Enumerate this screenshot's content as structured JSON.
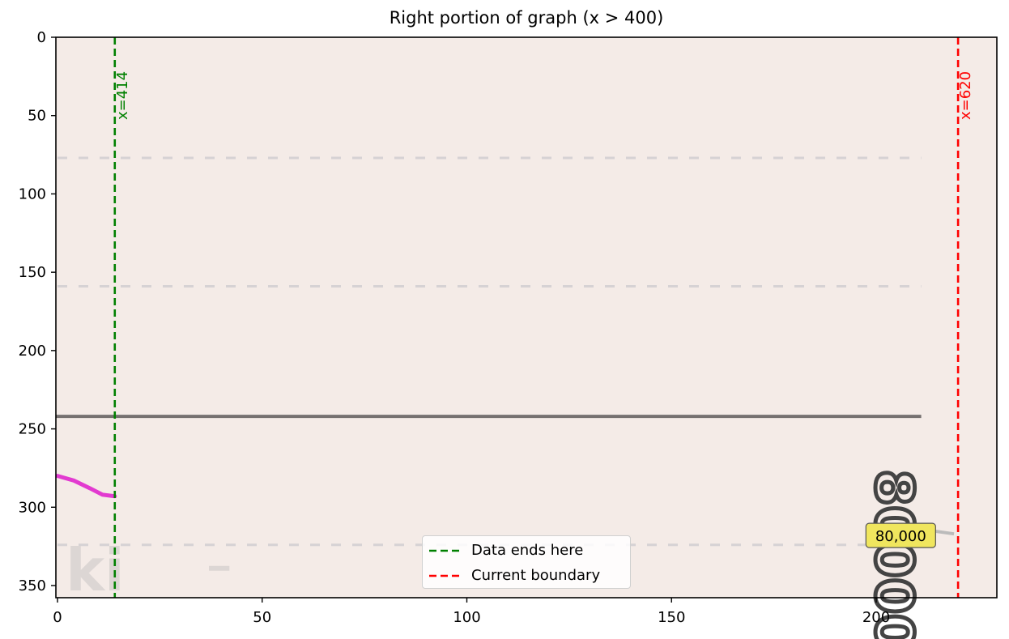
{
  "chart_data": {
    "type": "line",
    "title": "Right portion of graph (x > 400)",
    "xlim": [
      0,
      230
    ],
    "ylim": [
      359,
      0
    ],
    "x_ticks": [
      0,
      50,
      100,
      150,
      200
    ],
    "y_ticks": [
      0,
      50,
      100,
      150,
      200,
      250,
      300,
      350
    ],
    "grid": false,
    "background": "#f4ebe7",
    "background_image": {
      "gridlines_y": [
        77,
        159,
        324
      ],
      "axis_line_y": 242,
      "axis_line_x_end": 211,
      "curve_color": "#e23ad0",
      "curve": [
        [
          0,
          280
        ],
        [
          4,
          283
        ],
        [
          8,
          288
        ],
        [
          11,
          292
        ],
        [
          14,
          293
        ]
      ],
      "faded_text": "ki",
      "rotated_tick_text": "80000"
    },
    "vlines": [
      {
        "x": 14,
        "label": "x=414",
        "color": "#008000",
        "style": "dashed",
        "legend": "Data ends here"
      },
      {
        "x": 220,
        "label": "x=620",
        "color": "#ff0000",
        "style": "dashed",
        "legend": "Current boundary"
      }
    ],
    "annotations": [
      {
        "text": "80,000",
        "x": 206,
        "y": 318,
        "box_color": "#f0e65e"
      }
    ],
    "legend_position": "lower center"
  }
}
